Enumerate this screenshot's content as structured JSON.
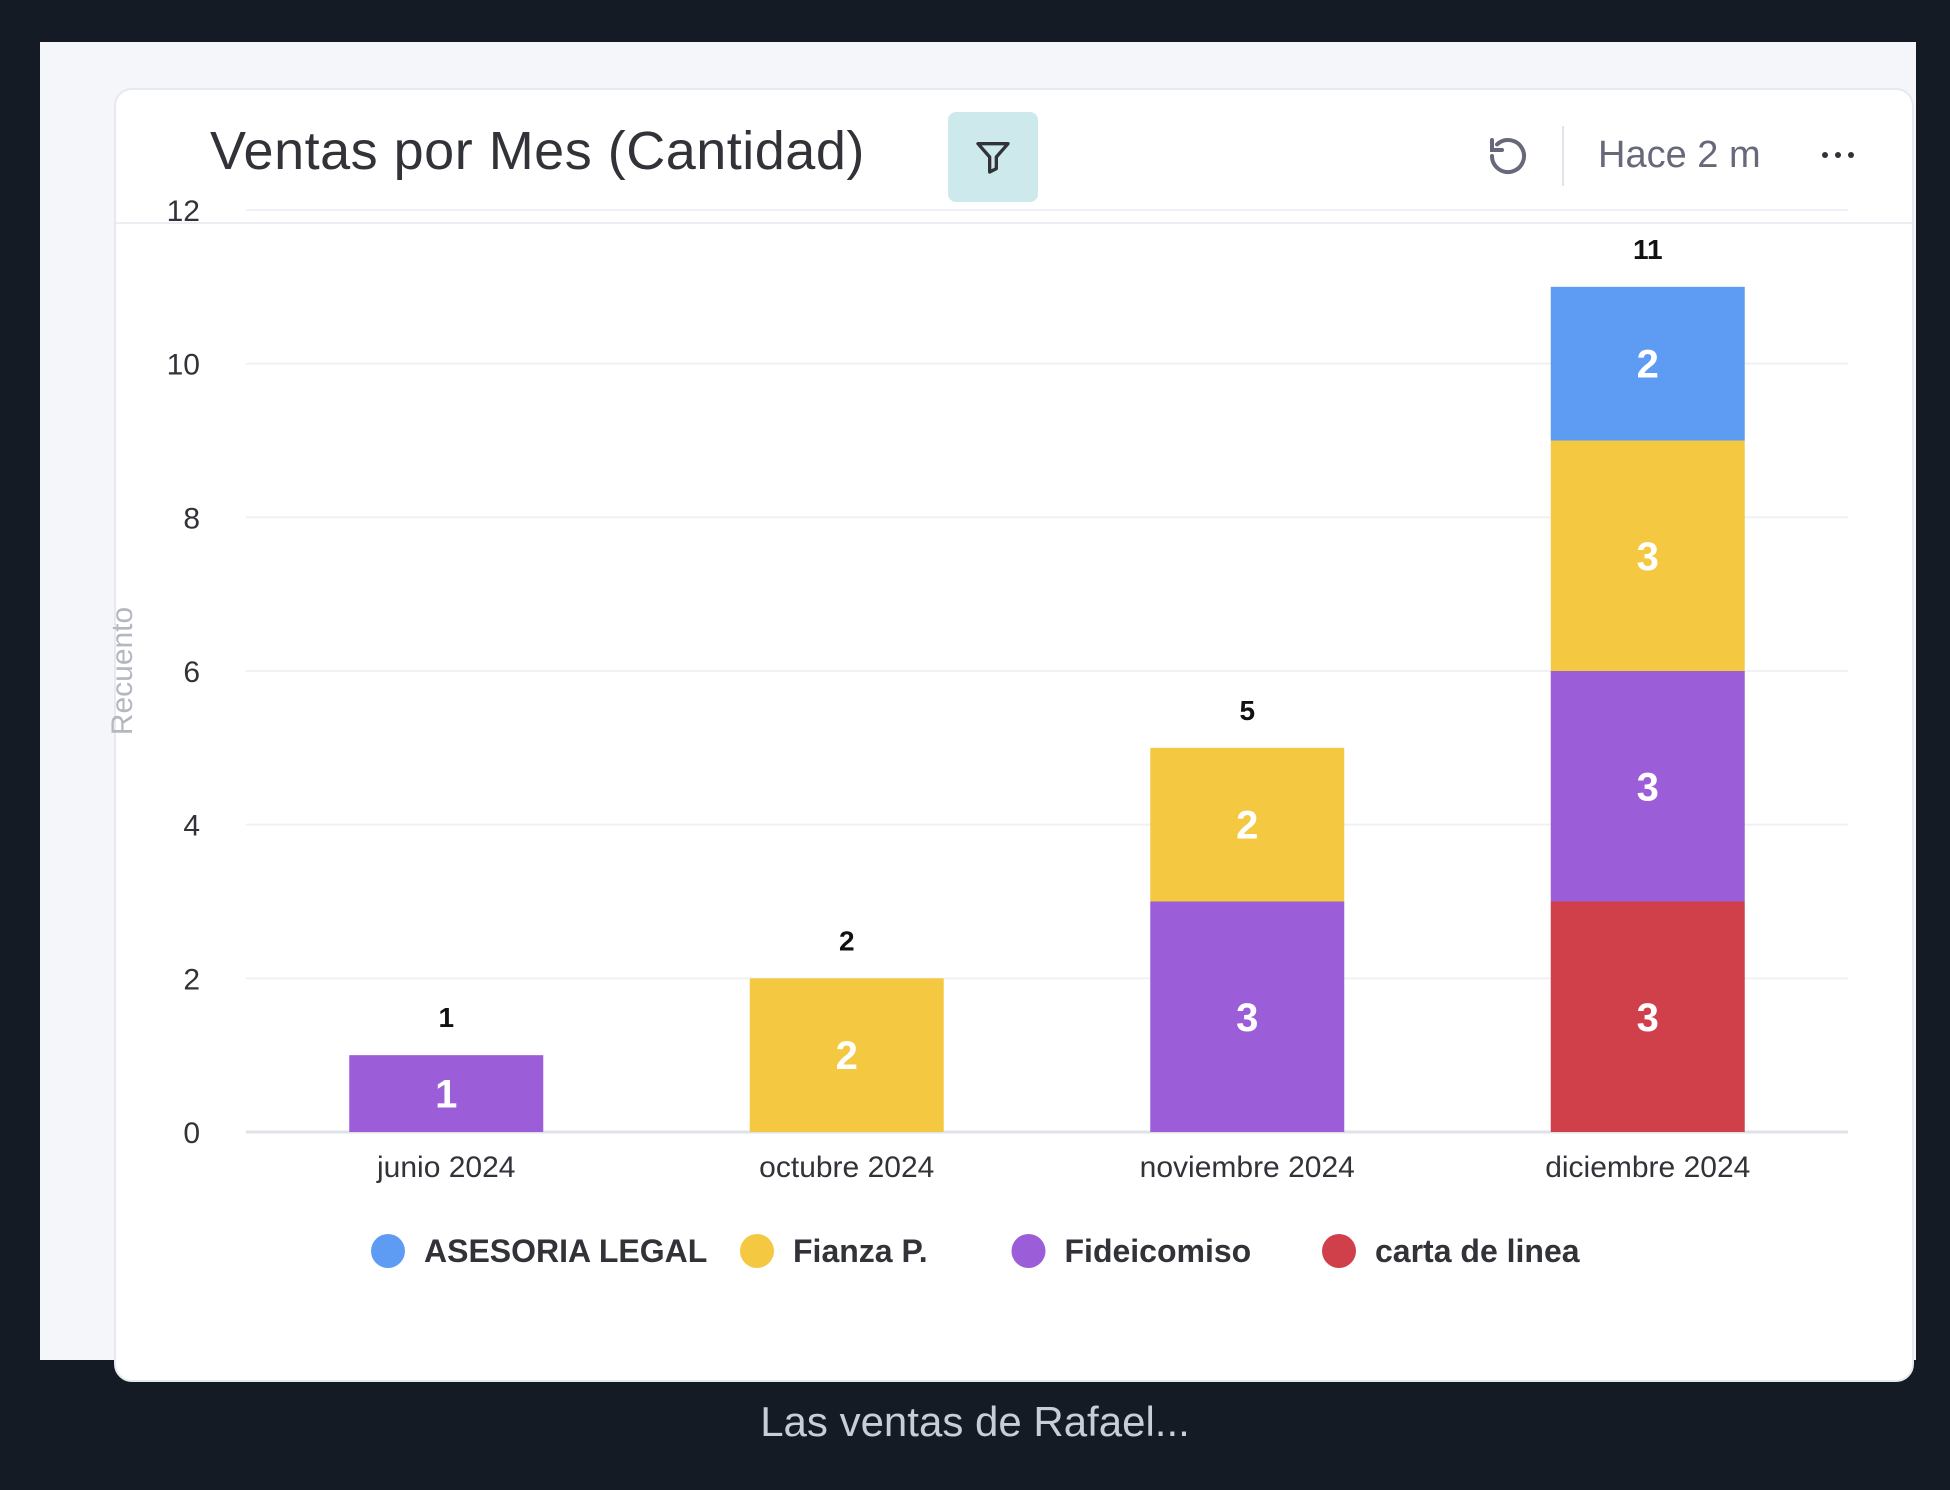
{
  "header": {
    "title": "Ventas por Mes (Cantidad)",
    "filter_icon": "filter-icon",
    "refresh_icon": "refresh-icon",
    "updated": "Hace 2 m",
    "more_icon": "more-horizontal-icon"
  },
  "caption": "Las ventas de Rafael...",
  "colors": {
    "ASESORIA LEGAL": "#5e9bf3",
    "Fianza P.": "#f5c842",
    "Fideicomiso": "#9b5ed8",
    "carta de linea": "#d0404b"
  },
  "chart_data": {
    "type": "bar",
    "stacked": true,
    "categories": [
      "junio 2024",
      "octubre 2024",
      "noviembre 2024",
      "diciembre 2024"
    ],
    "series": [
      {
        "name": "carta de linea",
        "values": [
          0,
          0,
          0,
          3
        ]
      },
      {
        "name": "Fideicomiso",
        "values": [
          1,
          0,
          3,
          3
        ]
      },
      {
        "name": "Fianza P.",
        "values": [
          0,
          2,
          2,
          3
        ]
      },
      {
        "name": "ASESORIA LEGAL",
        "values": [
          0,
          0,
          0,
          2
        ]
      }
    ],
    "totals": [
      1,
      2,
      5,
      11
    ],
    "ylabel": "Recuento",
    "xlabel": "",
    "ylim": [
      0,
      12
    ],
    "yticks": [
      0,
      2,
      4,
      6,
      8,
      10,
      12
    ],
    "grid": true,
    "legend_position": "bottom",
    "legend_order": [
      "ASESORIA LEGAL",
      "Fianza P.",
      "Fideicomiso",
      "carta de linea"
    ]
  }
}
